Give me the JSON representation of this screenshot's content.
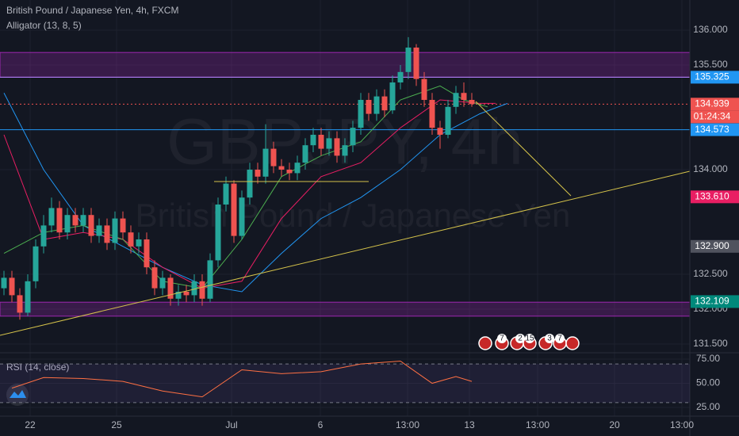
{
  "chart_data": {
    "type": "candlestick",
    "title": "British Pound / Japanese Yen, 4h, FXCM",
    "indicator_title": "Alligator (13, 8, 5)",
    "watermark": "GBPJPY, 4h",
    "watermark_subtitle": "British Pound / Japanese Yen",
    "up_color": "#26a69a",
    "down_color": "#ef5350",
    "open": [
      132.3,
      132.45,
      132.2,
      131.95,
      132.4,
      132.9,
      133.2,
      133.45,
      133.1,
      133.35,
      133.2,
      133.35,
      133.05,
      133.2,
      132.95,
      133.3,
      133.1,
      132.9,
      133.0,
      132.6,
      132.3,
      132.45,
      132.15,
      132.25,
      132.2,
      132.4,
      132.15,
      132.7,
      133.5,
      133.8,
      133.05,
      133.6,
      134.0,
      133.9,
      134.3,
      134.05,
      134.0,
      133.95,
      134.1,
      134.35,
      134.5,
      134.3,
      134.45,
      134.2,
      134.35,
      134.6,
      135.0,
      134.8,
      135.05,
      134.85,
      135.25,
      135.4,
      135.75,
      135.3,
      135.0,
      134.6,
      134.5,
      134.9,
      135.1,
      135.0
    ],
    "high": [
      132.55,
      132.55,
      132.3,
      132.5,
      133.0,
      133.35,
      133.6,
      133.55,
      133.45,
      133.45,
      133.45,
      133.45,
      133.3,
      133.3,
      133.4,
      133.4,
      133.2,
      133.1,
      133.1,
      132.7,
      132.55,
      132.5,
      132.35,
      132.35,
      132.5,
      132.5,
      132.8,
      133.6,
      133.9,
      133.85,
      133.7,
      134.1,
      134.1,
      134.65,
      134.4,
      134.15,
      134.1,
      134.2,
      134.45,
      134.6,
      134.6,
      134.55,
      134.55,
      134.45,
      134.7,
      135.1,
      135.1,
      135.15,
      135.15,
      135.35,
      135.5,
      135.9,
      135.8,
      135.4,
      135.1,
      134.7,
      135.0,
      135.2,
      135.25,
      135.1
    ],
    "low": [
      132.2,
      132.1,
      131.85,
      131.9,
      132.3,
      132.8,
      133.1,
      133.0,
      133.0,
      133.1,
      133.1,
      132.95,
      132.95,
      132.85,
      132.85,
      133.0,
      132.8,
      132.8,
      132.5,
      132.2,
      132.2,
      132.05,
      132.05,
      132.1,
      132.1,
      132.05,
      132.1,
      132.6,
      133.4,
      132.95,
      133.0,
      133.5,
      133.8,
      133.8,
      133.95,
      133.9,
      133.85,
      133.85,
      134.0,
      134.25,
      134.2,
      134.2,
      134.1,
      134.1,
      134.25,
      134.5,
      134.7,
      134.7,
      134.75,
      134.8,
      135.15,
      135.3,
      135.2,
      134.9,
      134.5,
      134.3,
      134.45,
      134.8,
      134.9,
      134.9
    ],
    "close": [
      132.45,
      132.2,
      131.95,
      132.4,
      132.9,
      133.2,
      133.45,
      133.1,
      133.35,
      133.2,
      133.35,
      133.05,
      133.2,
      132.95,
      133.3,
      133.1,
      132.9,
      133.0,
      132.6,
      132.3,
      132.45,
      132.15,
      132.25,
      132.2,
      132.4,
      132.15,
      132.7,
      133.5,
      133.8,
      133.05,
      133.6,
      134.0,
      133.9,
      134.3,
      134.05,
      134.0,
      133.95,
      134.1,
      134.35,
      134.5,
      134.3,
      134.45,
      134.2,
      134.35,
      134.6,
      135.0,
      134.8,
      135.05,
      134.85,
      135.25,
      135.4,
      135.75,
      135.3,
      135.0,
      134.6,
      134.5,
      134.9,
      135.1,
      135.0,
      134.94
    ],
    "xlim": [
      -0.5,
      86.5
    ],
    "ylim": [
      131.375,
      136.432
    ],
    "yticks": [
      {
        "value": 136.0,
        "label": "136.000"
      },
      {
        "value": 135.5,
        "label": "135.500"
      },
      {
        "value": 134.0,
        "label": "134.000"
      },
      {
        "value": 132.5,
        "label": "132.500"
      },
      {
        "value": 132.0,
        "label": "132.000"
      },
      {
        "value": 131.5,
        "label": "131.500"
      }
    ],
    "xticks": [
      {
        "value": 3.3,
        "label": "22"
      },
      {
        "value": 14.2,
        "label": "25"
      },
      {
        "value": 28.7,
        "label": "Jul"
      },
      {
        "value": 39.9,
        "label": "6"
      },
      {
        "value": 50.9,
        "label": "13:00"
      },
      {
        "value": 58.7,
        "label": "13"
      },
      {
        "value": 67.3,
        "label": "13:00"
      },
      {
        "value": 77,
        "label": "20"
      },
      {
        "value": 85.5,
        "label": "13:00"
      }
    ],
    "grid": true,
    "overlays": [
      {
        "name": "Jaw",
        "color": "#2196f3",
        "x": [
          0,
          5,
          10,
          15,
          20,
          25,
          30,
          35,
          40,
          45,
          50,
          55,
          60,
          63.5
        ],
        "values": [
          135.1,
          134.0,
          133.2,
          132.9,
          132.6,
          132.35,
          132.25,
          132.8,
          133.3,
          133.6,
          134.0,
          134.5,
          134.8,
          134.95
        ]
      },
      {
        "name": "Teeth",
        "color": "#e91e63",
        "x": [
          0,
          5,
          10,
          15,
          20,
          25,
          30,
          35,
          40,
          45,
          50,
          55,
          60,
          62
        ],
        "values": [
          134.5,
          133.0,
          133.1,
          133.0,
          132.6,
          132.3,
          132.4,
          133.3,
          133.9,
          134.1,
          134.6,
          135.0,
          134.95,
          134.95
        ]
      },
      {
        "name": "Lips",
        "color": "#4caf50",
        "x": [
          0,
          5,
          10,
          15,
          20,
          25,
          30,
          35,
          40,
          45,
          50,
          55,
          58,
          61
        ],
        "values": [
          132.8,
          133.1,
          133.2,
          133.0,
          132.4,
          132.3,
          133.0,
          133.9,
          134.2,
          134.4,
          135.0,
          135.2,
          135.0,
          134.9
        ]
      }
    ],
    "zones": [
      {
        "from": 135.325,
        "to": 135.68,
        "color": "#9c27b0"
      },
      {
        "from": 131.9,
        "to": 132.1,
        "color": "#9c27b0"
      }
    ],
    "levels": [
      {
        "value": 135.325,
        "color": "#b388ff",
        "style": "solid"
      },
      {
        "value": 134.573,
        "color": "#2196f3",
        "style": "solid"
      },
      {
        "value": 134.939,
        "color": "#ef5350",
        "style": "dotted"
      }
    ],
    "trendlines": [
      {
        "x": [
          -0.5,
          86.5
        ],
        "values": [
          131.625,
          133.977
        ],
        "color": "#d4c24a"
      },
      {
        "x": [
          59.5,
          71.5
        ],
        "values": [
          134.977,
          133.625
        ],
        "color": "#d4c24a"
      },
      {
        "x": [
          26.5,
          46
        ],
        "values": [
          133.83,
          133.83
        ],
        "color": "#d4c24a"
      }
    ],
    "price_labels": [
      {
        "value": 135.325,
        "label": "135.325",
        "color": "#2196f3"
      },
      {
        "value": 134.939,
        "label": "134.939",
        "color": "#ef5350"
      },
      {
        "value": 134.573,
        "label": "134.573",
        "color": "#2196f3"
      },
      {
        "value": 133.61,
        "label": "133.610",
        "color": "#e91e63"
      },
      {
        "value": 132.9,
        "label": "132.900",
        "color": "#50535e"
      },
      {
        "value": 132.109,
        "label": "132.109",
        "color": "#00897b"
      }
    ],
    "countdown": "01:24:34",
    "events": [
      7,
      2,
      15,
      3,
      7
    ],
    "rsi": {
      "title": "RSI (14, close)",
      "color": "#ff7043",
      "x": [
        1,
        5,
        10,
        15,
        20,
        25,
        30,
        35,
        40,
        45,
        50,
        54,
        57,
        59
      ],
      "values": [
        45,
        56,
        55,
        52,
        42,
        36,
        64,
        60,
        62,
        70,
        73,
        50,
        57,
        52
      ],
      "ylim": [
        16,
        81.6
      ],
      "yticks": [
        {
          "value": 75,
          "label": "75.00"
        },
        {
          "value": 50,
          "label": "50.00"
        },
        {
          "value": 25,
          "label": "25.00"
        }
      ],
      "band": [
        30,
        70
      ]
    }
  }
}
